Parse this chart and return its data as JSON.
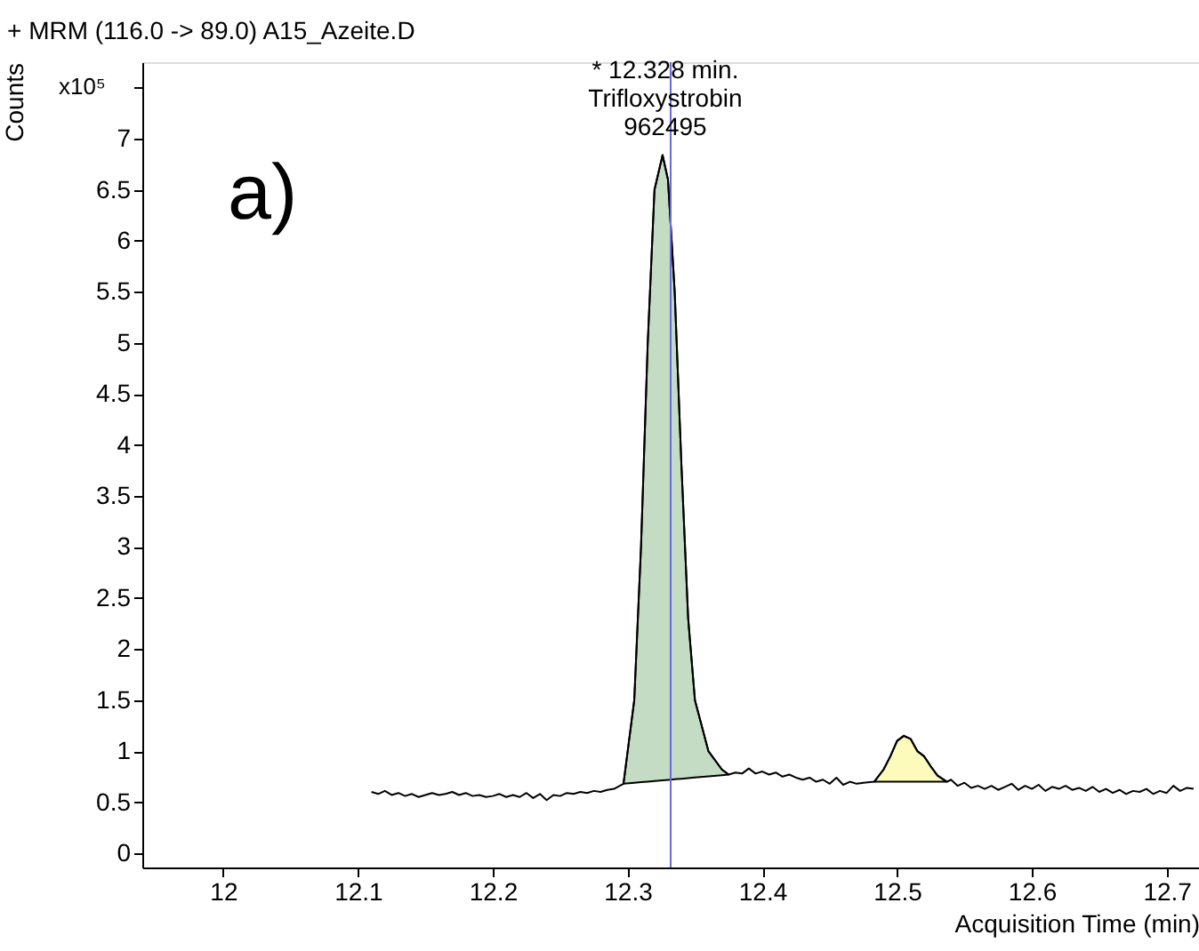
{
  "chart_data": {
    "type": "line",
    "title": "+ MRM (116.0 -> 89.0) A15_Azeite.D",
    "xlabel": "Acquisition Time (min)",
    "ylabel": "Counts",
    "xlim": [
      11.94,
      12.724
    ],
    "xticks": [
      12,
      12.1,
      12.2,
      12.3,
      12.4,
      12.5,
      12.6,
      12.7
    ],
    "ylim": [
      -0.14,
      7.75
    ],
    "yticks": [
      0,
      0.5,
      1,
      1.5,
      2,
      2.5,
      3,
      3.5,
      4,
      4.5,
      5,
      5.5,
      6,
      6.5,
      7,
      {
        "value": 7.5,
        "label": null
      }
    ],
    "marker": "none",
    "line_style": "solid",
    "annotations": [
      "x10⁵",
      "a)",
      {
        "text": "* 12.328 min.\nTrifloxystrobin\n962495",
        "x": 12.328,
        "y": 6.84
      }
    ],
    "ref_lines": [
      {
        "axis": "x",
        "value": 12.332,
        "color": "#6a6adc",
        "line_style": "solid"
      }
    ],
    "series": [
      {
        "type": "area",
        "color": "#c3dcc3",
        "x": [
          12.297,
          12.305,
          12.31,
          12.315,
          12.32,
          12.326,
          12.33,
          12.335,
          12.34,
          12.345,
          12.35,
          12.36,
          12.37,
          12.375
        ],
        "values": [
          0.68,
          1.5,
          3.0,
          5.0,
          6.5,
          6.84,
          6.6,
          5.5,
          3.8,
          2.3,
          1.5,
          1.0,
          0.82,
          0.77
        ]
      },
      {
        "type": "area",
        "color": "#fdfbbb",
        "x": [
          12.483,
          12.49,
          12.495,
          12.5,
          12.505,
          12.51,
          12.515,
          12.52,
          12.525,
          12.53,
          12.537
        ],
        "values": [
          0.7,
          0.82,
          0.95,
          1.1,
          1.15,
          1.12,
          1.0,
          0.95,
          0.85,
          0.76,
          0.7
        ]
      },
      {
        "color": "#000000",
        "x": [
          12.11,
          12.115,
          12.12,
          12.125,
          12.13,
          12.135,
          12.14,
          12.145,
          12.15,
          12.155,
          12.16,
          12.165,
          12.17,
          12.175,
          12.18,
          12.185,
          12.19,
          12.195,
          12.2,
          12.205,
          12.21,
          12.215,
          12.22,
          12.225,
          12.23,
          12.235,
          12.24,
          12.245,
          12.25,
          12.255,
          12.26,
          12.265,
          12.27,
          12.275,
          12.28,
          12.285,
          12.29,
          12.297,
          12.305,
          12.31,
          12.315,
          12.32,
          12.326,
          12.33,
          12.335,
          12.34,
          12.345,
          12.35,
          12.36,
          12.37,
          12.375,
          12.38,
          12.385,
          12.39,
          12.395,
          12.4,
          12.405,
          12.41,
          12.415,
          12.42,
          12.425,
          12.43,
          12.435,
          12.44,
          12.445,
          12.45,
          12.455,
          12.46,
          12.465,
          12.47,
          12.475,
          12.483,
          12.49,
          12.495,
          12.5,
          12.505,
          12.51,
          12.515,
          12.52,
          12.525,
          12.53,
          12.537,
          12.54,
          12.545,
          12.55,
          12.555,
          12.56,
          12.565,
          12.57,
          12.575,
          12.58,
          12.585,
          12.59,
          12.595,
          12.6,
          12.605,
          12.61,
          12.615,
          12.62,
          12.625,
          12.63,
          12.635,
          12.64,
          12.645,
          12.65,
          12.655,
          12.66,
          12.665,
          12.67,
          12.675,
          12.68,
          12.685,
          12.69,
          12.695,
          12.7,
          12.705,
          12.71,
          12.715,
          12.72
        ],
        "values": [
          0.6,
          0.58,
          0.61,
          0.57,
          0.59,
          0.56,
          0.58,
          0.55,
          0.57,
          0.59,
          0.57,
          0.58,
          0.6,
          0.57,
          0.59,
          0.56,
          0.57,
          0.55,
          0.56,
          0.58,
          0.55,
          0.57,
          0.55,
          0.59,
          0.54,
          0.58,
          0.52,
          0.57,
          0.56,
          0.59,
          0.58,
          0.6,
          0.59,
          0.61,
          0.6,
          0.62,
          0.63,
          0.68,
          1.5,
          3.0,
          5.0,
          6.5,
          6.84,
          6.6,
          5.5,
          3.8,
          2.3,
          1.5,
          1.0,
          0.82,
          0.77,
          0.79,
          0.78,
          0.83,
          0.78,
          0.8,
          0.77,
          0.79,
          0.75,
          0.77,
          0.74,
          0.72,
          0.74,
          0.7,
          0.72,
          0.68,
          0.74,
          0.67,
          0.7,
          0.68,
          0.69,
          0.7,
          0.82,
          0.95,
          1.1,
          1.15,
          1.12,
          1.0,
          0.95,
          0.85,
          0.76,
          0.7,
          0.72,
          0.66,
          0.69,
          0.64,
          0.66,
          0.63,
          0.66,
          0.62,
          0.65,
          0.68,
          0.62,
          0.66,
          0.63,
          0.67,
          0.61,
          0.65,
          0.63,
          0.66,
          0.62,
          0.64,
          0.61,
          0.65,
          0.6,
          0.63,
          0.59,
          0.62,
          0.58,
          0.61,
          0.6,
          0.63,
          0.58,
          0.61,
          0.59,
          0.66,
          0.61,
          0.64,
          0.63
        ]
      }
    ]
  }
}
